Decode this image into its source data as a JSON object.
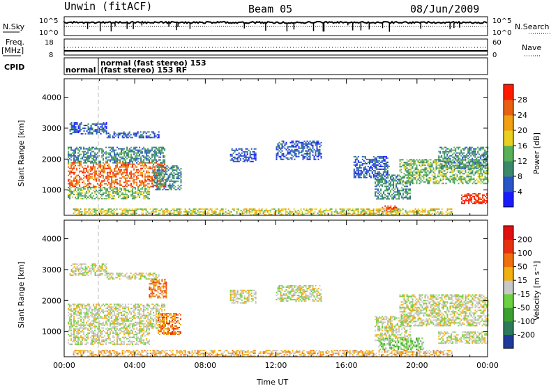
{
  "header": {
    "station": "Unwin (fitACF)",
    "beam": "Beam 05",
    "date": "08/Jun/2009"
  },
  "status_panels": {
    "nsky": {
      "label": "N.Sky",
      "scale_top": "10^5",
      "scale_bottom": "10^0"
    },
    "nsearch": {
      "label": "N.Search",
      "scale_top": "10^5",
      "scale_bottom": "10^0",
      "line_style": "dotted"
    },
    "freq": {
      "label_top": "Freq.",
      "label_bottom": "[MHz]",
      "scale_top": "18",
      "scale_bottom": "8"
    },
    "nave": {
      "label": "Nave",
      "scale_top": "60",
      "scale_bottom": "0",
      "line_style": "dotted"
    },
    "cpid": {
      "label": "CPID",
      "entries": [
        "normal",
        "normal (fast stereo) 153",
        "(fast stereo) 153 RF"
      ]
    }
  },
  "chart_data": [
    {
      "type": "heatmap",
      "name": "power",
      "xlabel": "",
      "ylabel": "Slant Range [km]",
      "x_range_hours": [
        0,
        24
      ],
      "ylim": [
        180,
        4600
      ],
      "y_ticks": [
        "1000",
        "2000",
        "3000",
        "4000"
      ],
      "colorbar": {
        "label": "Power [dB]",
        "tick_labels": [
          "4",
          "8",
          "12",
          "16",
          "20",
          "24",
          "28"
        ],
        "colors": [
          "#1a1aff",
          "#2a55c8",
          "#3a8a6a",
          "#58b058",
          "#e8d020",
          "#f0a010",
          "#e86010",
          "#ff1a00"
        ]
      },
      "regions": [
        {
          "t0": 0.2,
          "t1": 5.7,
          "r0": 1100,
          "r1": 1900,
          "level": 6
        },
        {
          "t0": 0.2,
          "t1": 5.7,
          "r0": 1900,
          "r1": 2400,
          "level": 2
        },
        {
          "t0": 0.2,
          "t1": 4.8,
          "r0": 700,
          "r1": 1100,
          "level": 3
        },
        {
          "t0": 0.3,
          "t1": 2.4,
          "r0": 2800,
          "r1": 3200,
          "level": 1
        },
        {
          "t0": 2.4,
          "t1": 5.4,
          "r0": 2700,
          "r1": 2900,
          "level": 1
        },
        {
          "t0": 5.0,
          "t1": 6.6,
          "r0": 1000,
          "r1": 1800,
          "level": 2
        },
        {
          "t0": 9.4,
          "t1": 10.9,
          "r0": 1900,
          "r1": 2350,
          "level": 1
        },
        {
          "t0": 12.0,
          "t1": 14.6,
          "r0": 2000,
          "r1": 2600,
          "level": 1
        },
        {
          "t0": 16.4,
          "t1": 18.4,
          "r0": 1400,
          "r1": 2100,
          "level": 1
        },
        {
          "t0": 17.6,
          "t1": 19.6,
          "r0": 700,
          "r1": 1500,
          "level": 2
        },
        {
          "t0": 18.0,
          "t1": 19.0,
          "r0": 300,
          "r1": 500,
          "level": 7
        },
        {
          "t0": 19.0,
          "t1": 24.0,
          "r0": 1200,
          "r1": 2000,
          "level": 3
        },
        {
          "t0": 21.2,
          "t1": 24.0,
          "r0": 1700,
          "r1": 2400,
          "level": 2
        },
        {
          "t0": 22.5,
          "t1": 24.0,
          "r0": 550,
          "r1": 900,
          "level": 7
        },
        {
          "t0": 0.5,
          "t1": 22.0,
          "r0": 180,
          "r1": 400,
          "level": 4
        }
      ]
    },
    {
      "type": "heatmap",
      "name": "velocity",
      "xlabel": "Time UT",
      "ylabel": "Slant Range [km]",
      "x_range_hours": [
        0,
        24
      ],
      "x_ticks": [
        "00:00",
        "04:00",
        "08:00",
        "12:00",
        "16:00",
        "20:00",
        "00:00"
      ],
      "ylim": [
        180,
        4600
      ],
      "y_ticks": [
        "1000",
        "2000",
        "3000",
        "4000"
      ],
      "colorbar": {
        "label": "Velocity [m s⁻¹]",
        "tick_labels": [
          "200",
          "100",
          "50",
          "15",
          "-15",
          "-50",
          "-100",
          "-200"
        ],
        "colors": [
          "#1e3a9a",
          "#2c7a5a",
          "#3ca030",
          "#6cd040",
          "#c8c8c8",
          "#f0b010",
          "#f07010",
          "#e83010",
          "#e01010"
        ]
      },
      "regions": [
        {
          "t0": 0.2,
          "t1": 5.7,
          "r0": 1100,
          "r1": 1900,
          "level": 4
        },
        {
          "t0": 0.2,
          "t1": 4.8,
          "r0": 600,
          "r1": 1100,
          "level": 4
        },
        {
          "t0": 0.3,
          "t1": 2.4,
          "r0": 2800,
          "r1": 3200,
          "level": 4
        },
        {
          "t0": 2.4,
          "t1": 5.4,
          "r0": 2700,
          "r1": 2900,
          "level": 4
        },
        {
          "t0": 5.3,
          "t1": 6.6,
          "r0": 900,
          "r1": 1600,
          "level": 6
        },
        {
          "t0": 9.4,
          "t1": 10.9,
          "r0": 1900,
          "r1": 2350,
          "level": 4
        },
        {
          "t0": 12.0,
          "t1": 14.6,
          "r0": 2000,
          "r1": 2500,
          "level": 4
        },
        {
          "t0": 17.6,
          "t1": 19.6,
          "r0": 700,
          "r1": 1500,
          "level": 4
        },
        {
          "t0": 17.8,
          "t1": 20.4,
          "r0": 400,
          "r1": 800,
          "level": 3
        },
        {
          "t0": 19.0,
          "t1": 24.0,
          "r0": 1200,
          "r1": 2200,
          "level": 4
        },
        {
          "t0": 21.2,
          "t1": 24.0,
          "r0": 600,
          "r1": 1000,
          "level": 4
        },
        {
          "t0": 0.5,
          "t1": 22.0,
          "r0": 180,
          "r1": 400,
          "level": 5
        },
        {
          "t0": 4.8,
          "t1": 5.8,
          "r0": 2100,
          "r1": 2700,
          "level": 6
        }
      ]
    }
  ]
}
